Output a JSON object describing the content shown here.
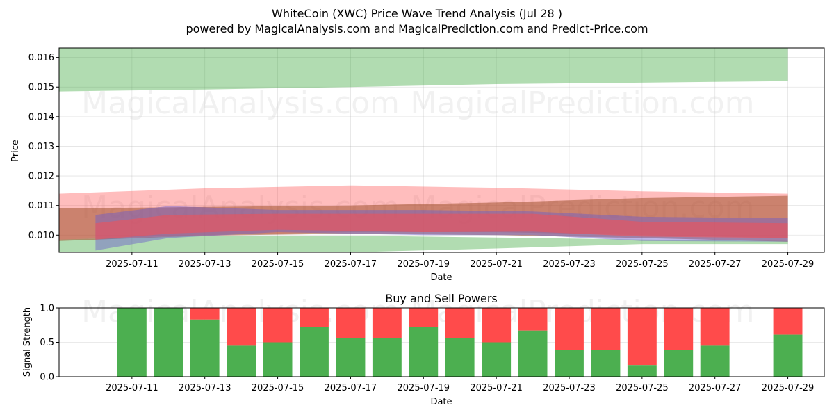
{
  "title": "WhiteCoin (XWC) Price Wave Trend Analysis (Jul 28 )",
  "subtitle": "powered by MagicalAnalysis.com and MagicalPrediction.com and Predict-Price.com",
  "watermarks": [
    "MagicalAnalysis.com",
    "MagicalPrediction.com"
  ],
  "chart_data": [
    {
      "type": "area",
      "xlabel": "Date",
      "ylabel": "Price",
      "xlim": [
        "2025-07-09",
        "2025-07-30"
      ],
      "ylim": [
        0.00942,
        0.01632
      ],
      "yticks": [
        "0.010",
        "0.011",
        "0.012",
        "0.013",
        "0.014",
        "0.015",
        "0.016"
      ],
      "xticks": [
        "2025-07-11",
        "2025-07-13",
        "2025-07-15",
        "2025-07-17",
        "2025-07-19",
        "2025-07-21",
        "2025-07-23",
        "2025-07-25",
        "2025-07-27",
        "2025-07-29"
      ],
      "grid": true,
      "colors": {
        "green": "#2ca02c",
        "red": "#ff4b4b",
        "brown": "#a0522d",
        "purple": "#6a5acd"
      },
      "bands": [
        {
          "color": "green",
          "opacity": 0.37,
          "x": [
            "2025-07-09",
            "2025-07-13",
            "2025-07-17",
            "2025-07-21",
            "2025-07-25",
            "2025-07-29"
          ],
          "upper": [
            0.01632,
            0.01632,
            0.01632,
            0.01632,
            0.01632,
            0.01632
          ],
          "lower": [
            0.01485,
            0.01492,
            0.015,
            0.0151,
            0.01515,
            0.0152
          ]
        },
        {
          "color": "red",
          "opacity": 0.37,
          "x": [
            "2025-07-09",
            "2025-07-13",
            "2025-07-17",
            "2025-07-21",
            "2025-07-25",
            "2025-07-29"
          ],
          "upper": [
            0.0114,
            0.01158,
            0.01168,
            0.0116,
            0.01148,
            0.0114
          ],
          "lower": [
            0.00985,
            0.01,
            0.0101,
            0.0101,
            0.01,
            0.0099
          ]
        },
        {
          "color": "green",
          "opacity": 0.37,
          "x": [
            "2025-07-09",
            "2025-07-13",
            "2025-07-17",
            "2025-07-21",
            "2025-07-25",
            "2025-07-29"
          ],
          "upper": [
            0.00985,
            0.00998,
            0.00998,
            0.00992,
            0.00985,
            0.0098
          ],
          "lower": [
            0.00942,
            0.00942,
            0.00942,
            0.00955,
            0.0097,
            0.0097
          ]
        },
        {
          "color": "brown",
          "opacity": 0.55,
          "x": [
            "2025-07-09",
            "2025-07-13",
            "2025-07-17",
            "2025-07-21",
            "2025-07-25",
            "2025-07-29"
          ],
          "upper": [
            0.0109,
            0.01095,
            0.011,
            0.0111,
            0.01125,
            0.01133
          ],
          "lower": [
            0.0098,
            0.00998,
            0.01005,
            0.01,
            0.0099,
            0.00978
          ]
        },
        {
          "color": "purple",
          "opacity": 0.45,
          "x": [
            "2025-07-10",
            "2025-07-12",
            "2025-07-15",
            "2025-07-19",
            "2025-07-22",
            "2025-07-25",
            "2025-07-29"
          ],
          "upper": [
            0.01068,
            0.01098,
            0.01085,
            0.01085,
            0.0108,
            0.01062,
            0.01057
          ],
          "lower": [
            0.00948,
            0.0099,
            0.0101,
            0.01,
            0.01,
            0.0098,
            0.00978
          ]
        },
        {
          "color": "red",
          "opacity": 0.5,
          "x": [
            "2025-07-10",
            "2025-07-12",
            "2025-07-15",
            "2025-07-19",
            "2025-07-22",
            "2025-07-25",
            "2025-07-29"
          ],
          "upper": [
            0.0104,
            0.01068,
            0.01072,
            0.01072,
            0.01072,
            0.01045,
            0.0104
          ],
          "lower": [
            0.00985,
            0.01005,
            0.01018,
            0.0101,
            0.01012,
            0.00995,
            0.0099
          ]
        }
      ]
    },
    {
      "type": "bar",
      "title": "Buy and Sell Powers",
      "xlabel": "Date",
      "ylabel": "Signal Strength",
      "xlim": [
        "2025-07-09",
        "2025-07-30"
      ],
      "ylim": [
        0,
        1
      ],
      "yticks": [
        "0.0",
        "0.5",
        "1.0"
      ],
      "xticks": [
        "2025-07-11",
        "2025-07-13",
        "2025-07-15",
        "2025-07-17",
        "2025-07-19",
        "2025-07-21",
        "2025-07-23",
        "2025-07-25",
        "2025-07-27",
        "2025-07-29"
      ],
      "grid": true,
      "colors": {
        "buy": "#4caf50",
        "sell": "#ff4b4b"
      },
      "x": [
        "2025-07-11",
        "2025-07-12",
        "2025-07-13",
        "2025-07-14",
        "2025-07-15",
        "2025-07-16",
        "2025-07-17",
        "2025-07-18",
        "2025-07-19",
        "2025-07-20",
        "2025-07-21",
        "2025-07-22",
        "2025-07-23",
        "2025-07-24",
        "2025-07-25",
        "2025-07-26",
        "2025-07-27",
        "2025-07-29"
      ],
      "buy": [
        1.0,
        1.0,
        0.83,
        0.45,
        0.5,
        0.72,
        0.56,
        0.56,
        0.72,
        0.56,
        0.5,
        0.67,
        0.39,
        0.39,
        0.17,
        0.39,
        0.45,
        0.61
      ]
    }
  ]
}
